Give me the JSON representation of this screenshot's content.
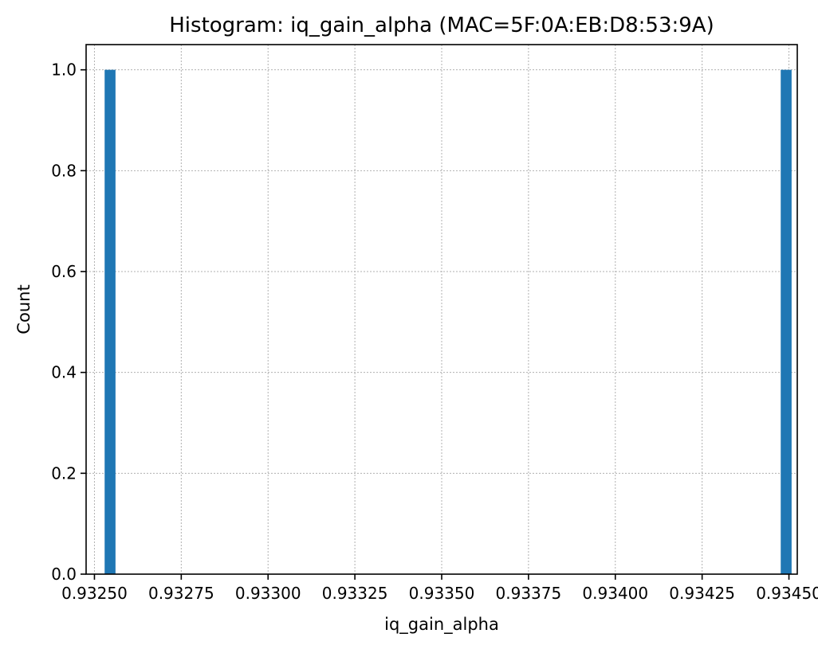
{
  "chart_data": {
    "type": "bar",
    "title": "Histogram: iq_gain_alpha (MAC=5F:0A:EB:D8:53:9A)",
    "xlabel": "iq_gain_alpha",
    "ylabel": "Count",
    "xlim": [
      0.932476,
      0.934524
    ],
    "ylim": [
      0.0,
      1.05
    ],
    "bin_width": 3.13e-05,
    "bars": [
      {
        "x": 0.932545,
        "value": 1.0
      },
      {
        "x": 0.934492,
        "value": 1.0
      }
    ],
    "x_ticks": [
      {
        "value": 0.9325,
        "label": "0.93250"
      },
      {
        "value": 0.93275,
        "label": "0.93275"
      },
      {
        "value": 0.933,
        "label": "0.93300"
      },
      {
        "value": 0.93325,
        "label": "0.93325"
      },
      {
        "value": 0.9335,
        "label": "0.93350"
      },
      {
        "value": 0.93375,
        "label": "0.93375"
      },
      {
        "value": 0.934,
        "label": "0.93400"
      },
      {
        "value": 0.93425,
        "label": "0.93425"
      },
      {
        "value": 0.9345,
        "label": "0.93450"
      }
    ],
    "y_ticks": [
      {
        "value": 0.0,
        "label": "0.0"
      },
      {
        "value": 0.2,
        "label": "0.2"
      },
      {
        "value": 0.4,
        "label": "0.4"
      },
      {
        "value": 0.6,
        "label": "0.6"
      },
      {
        "value": 0.8,
        "label": "0.8"
      },
      {
        "value": 1.0,
        "label": "1.0"
      }
    ],
    "grid": true,
    "bar_color": "#1f77b4"
  }
}
